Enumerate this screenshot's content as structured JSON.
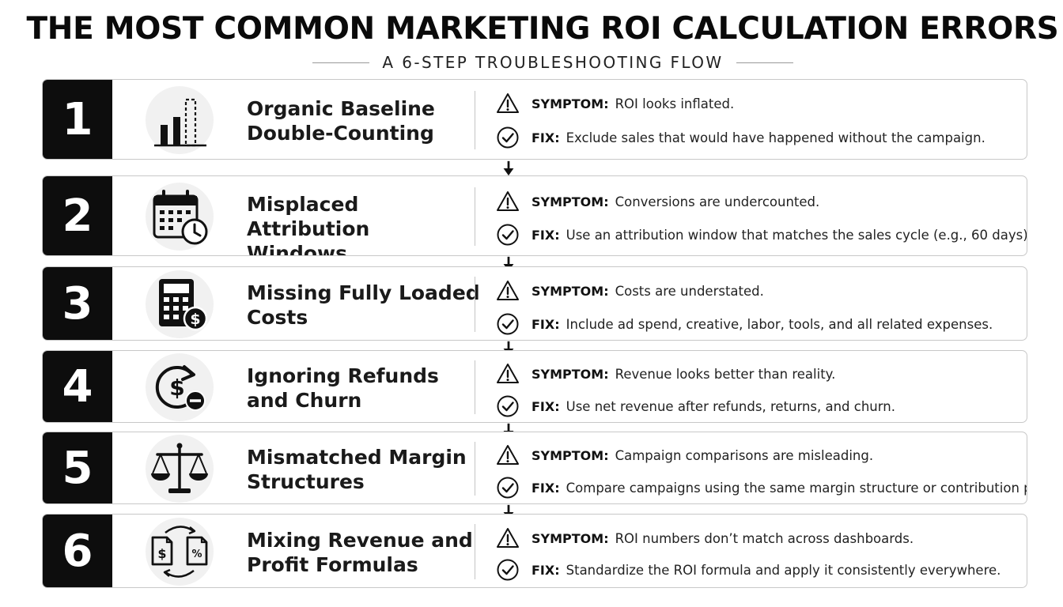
{
  "header": {
    "title": "THE MOST COMMON MARKETING ROI CALCULATION ERRORS",
    "subtitle": "A 6-STEP TROUBLESHOOTING FLOW"
  },
  "labels": {
    "symptom": "SYMPTOM:",
    "fix": "FIX:"
  },
  "steps": [
    {
      "number": "1",
      "title_line1": "Organic Baseline",
      "title_line2": "Double-Counting",
      "icon": "bar-chart-icon",
      "symptom": "ROI looks inflated.",
      "fix": "Exclude sales that would have happened without the campaign."
    },
    {
      "number": "2",
      "title_line1": "Misplaced Attribution",
      "title_line2": "Windows",
      "icon": "calendar-clock-icon",
      "symptom": "Conversions are undercounted.",
      "fix": "Use an attribution window that matches the sales cycle (e.g., 60 days)."
    },
    {
      "number": "3",
      "title_line1": "Missing Fully Loaded",
      "title_line2": "Costs",
      "icon": "calculator-dollar-icon",
      "symptom": "Costs are understated.",
      "fix": "Include ad spend, creative, labor, tools, and all related expenses."
    },
    {
      "number": "4",
      "title_line1": "Ignoring Refunds",
      "title_line2": "and Churn",
      "icon": "refund-icon",
      "symptom": "Revenue looks better than reality.",
      "fix": "Use net revenue after refunds, returns, and churn."
    },
    {
      "number": "5",
      "title_line1": "Mismatched Margin",
      "title_line2": "Structures",
      "icon": "scale-icon",
      "symptom": "Campaign comparisons are misleading.",
      "fix": "Compare campaigns using the same margin structure or contribution profit."
    },
    {
      "number": "6",
      "title_line1": "Mixing Revenue and",
      "title_line2": "Profit Formulas",
      "icon": "documents-exchange-icon",
      "symptom": "ROI numbers don’t match across dashboards.",
      "fix": "Standardize the ROI formula and apply it consistently everywhere."
    }
  ],
  "colors": {
    "number_block": "#0d0d0d",
    "border": "#c8c8c8",
    "icon_bg": "#f1f1f1"
  }
}
